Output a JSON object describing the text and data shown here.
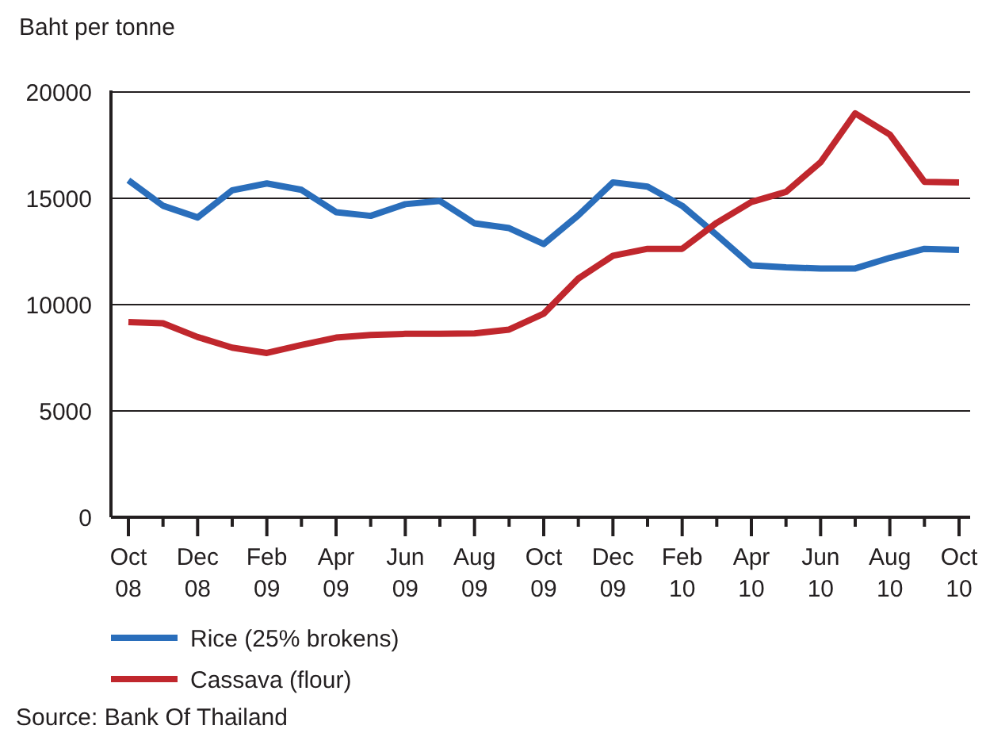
{
  "chart_data": {
    "type": "line",
    "ylabel": "Baht  per tonne",
    "categories": [
      "Oct 08",
      null,
      "Dec 08",
      null,
      "Feb 09",
      null,
      "Apr 09",
      null,
      "Jun 09",
      null,
      "Aug 09",
      null,
      "Oct 09",
      null,
      "Dec 09",
      null,
      "Feb 10",
      null,
      "Apr 10",
      null,
      "Jun 10",
      null,
      "Aug 10",
      null,
      "Oct 10"
    ],
    "series": [
      {
        "name": "Rice (25% brokens)",
        "color": "#2a6ebb",
        "values": [
          15850,
          14650,
          14100,
          15375,
          15700,
          15400,
          14350,
          14175,
          14725,
          14875,
          13825,
          13600,
          12850,
          14200,
          15750,
          15550,
          14650,
          13275,
          11850,
          11750,
          11700,
          11700,
          12200,
          12625,
          12575
        ]
      },
      {
        "name": "Cassava (flour)",
        "color": "#c0272d",
        "values": [
          9175,
          9125,
          8475,
          7975,
          7725,
          8100,
          8450,
          8575,
          8625,
          8625,
          8650,
          8825,
          9575,
          11225,
          12300,
          12625,
          12625,
          13850,
          14825,
          15300,
          16700,
          19000,
          18000,
          15775,
          15750
        ]
      }
    ],
    "ylim": [
      0,
      20000
    ],
    "yticks": [
      0,
      5000,
      10000,
      15000,
      20000
    ],
    "grid": "y",
    "legend": "bottom",
    "marker": "none",
    "line_style": "solid",
    "annotations": [
      "Source: Bank Of Thailand"
    ]
  }
}
